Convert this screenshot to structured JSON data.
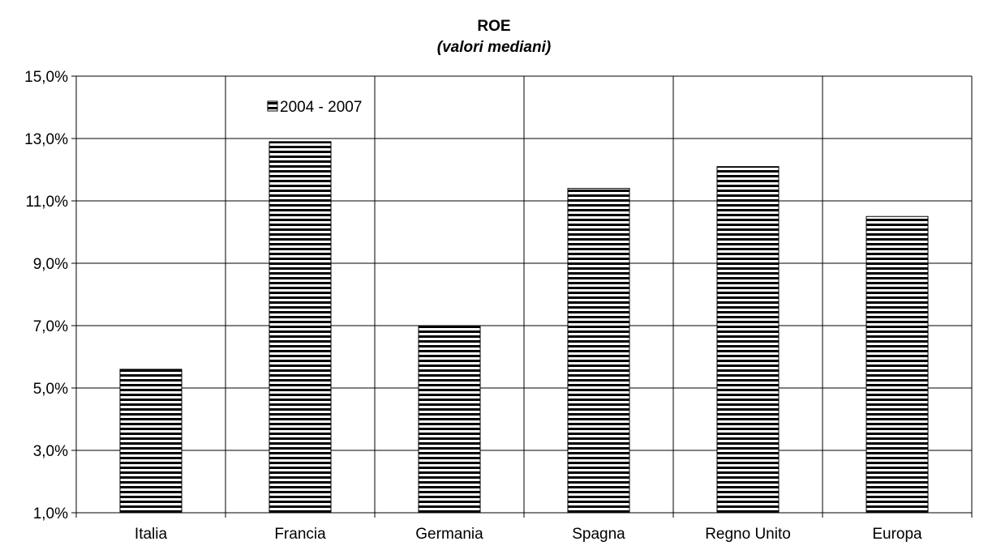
{
  "chart_data": {
    "type": "bar",
    "title": "ROE",
    "subtitle": "(valori mediani)",
    "categories": [
      "Italia",
      "Francia",
      "Germania",
      "Spagna",
      "Regno Unito",
      "Europa"
    ],
    "series": [
      {
        "name": "2004 - 2007",
        "values": [
          5.6,
          12.9,
          7.0,
          11.4,
          12.1,
          10.5
        ]
      }
    ],
    "y_ticks": [
      "1,0%",
      "3,0%",
      "5,0%",
      "7,0%",
      "9,0%",
      "11,0%",
      "13,0%",
      "15,0%"
    ],
    "ylim": [
      1,
      15
    ],
    "xlabel": "",
    "ylabel": "",
    "grid": true,
    "legend_position": "top-left",
    "bar_pattern": "horizontal-stripes",
    "colors": {
      "bar_stripe": "#000000",
      "bar_fill": "#ffffff",
      "grid": "#000000"
    }
  }
}
